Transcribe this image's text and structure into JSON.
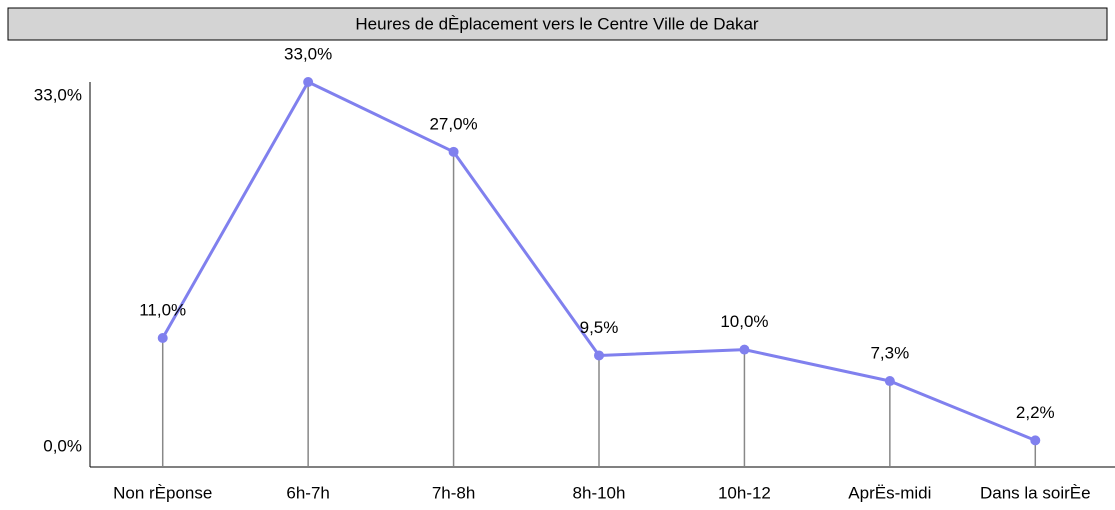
{
  "chart_data": {
    "type": "line",
    "title": "Heures de dÈplacement vers le Centre Ville de Dakar",
    "categories": [
      "Non rÈponse",
      "6h-7h",
      "7h-8h",
      "8h-10h",
      "10h-12",
      "AprËs-midi",
      "Dans la soirÈe"
    ],
    "values": [
      11.0,
      33.0,
      27.0,
      9.5,
      10.0,
      7.3,
      2.2
    ],
    "value_labels": [
      "11,0%",
      "33,0%",
      "27,0%",
      "9,5%",
      "10,0%",
      "7,3%",
      "2,2%"
    ],
    "color": "#8080ee",
    "ylim": [
      0,
      33
    ],
    "yticks": [
      {
        "value": 0,
        "label": "0,0%"
      },
      {
        "value": 33,
        "label": "33,0%"
      }
    ],
    "grid": false
  }
}
